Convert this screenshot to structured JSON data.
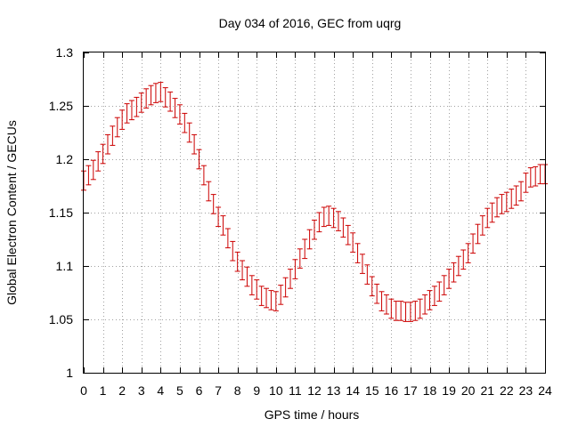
{
  "chart_data": {
    "type": "line",
    "title": "Day 034 of 2016, GEC from uqrg",
    "xlabel": "GPS time / hours",
    "ylabel": "Global Electron Content / GECUs",
    "xlim": [
      0,
      24
    ],
    "ylim": [
      1,
      1.3
    ],
    "grid": true,
    "error_bar_halfwidth": 0.009,
    "x_ticks": [
      0,
      1,
      2,
      3,
      4,
      5,
      6,
      7,
      8,
      9,
      10,
      11,
      12,
      13,
      14,
      15,
      16,
      17,
      18,
      19,
      20,
      21,
      22,
      23,
      24
    ],
    "x_tick_labels": [
      "0",
      "1",
      "2",
      "3",
      "4",
      "5",
      "6",
      "7",
      "8",
      "9",
      "10",
      "11",
      "12",
      "13",
      "14",
      "15",
      "16",
      "17",
      "18",
      "19",
      "20",
      "21",
      "22",
      "23",
      "24"
    ],
    "y_ticks": [
      1,
      1.05,
      1.1,
      1.15,
      1.2,
      1.25,
      1.3
    ],
    "y_tick_labels": [
      "1",
      "1.05",
      "1.1",
      "1.15",
      "1.2",
      "1.25",
      "1.3"
    ],
    "colors": {
      "series": "#cc0000",
      "grid": "#a0a0a0",
      "axis": "#000000"
    },
    "series": [
      {
        "x": [
          0,
          0.25,
          0.5,
          0.75,
          1,
          1.25,
          1.5,
          1.75,
          2,
          2.25,
          2.5,
          2.75,
          3,
          3.25,
          3.5,
          3.75,
          4,
          4.25,
          4.5,
          4.75,
          5,
          5.25,
          5.5,
          5.75,
          6,
          6.25,
          6.5,
          6.75,
          7,
          7.25,
          7.5,
          7.75,
          8,
          8.25,
          8.5,
          8.75,
          9,
          9.25,
          9.5,
          9.75,
          10,
          10.25,
          10.5,
          10.75,
          11,
          11.25,
          11.5,
          11.75,
          12,
          12.25,
          12.5,
          12.75,
          13,
          13.25,
          13.5,
          13.75,
          14,
          14.25,
          14.5,
          14.75,
          15,
          15.25,
          15.5,
          15.75,
          16,
          16.25,
          16.5,
          16.75,
          17,
          17.25,
          17.5,
          17.75,
          18,
          18.25,
          18.5,
          18.75,
          19,
          19.25,
          19.5,
          19.75,
          20,
          20.25,
          20.5,
          20.75,
          21,
          21.25,
          21.5,
          21.75,
          22,
          22.25,
          22.5,
          22.75,
          23,
          23.25,
          23.5,
          23.75,
          24
        ],
        "y": [
          1.18,
          1.185,
          1.19,
          1.198,
          1.205,
          1.214,
          1.222,
          1.23,
          1.237,
          1.243,
          1.246,
          1.249,
          1.253,
          1.257,
          1.26,
          1.262,
          1.263,
          1.258,
          1.254,
          1.248,
          1.242,
          1.234,
          1.225,
          1.214,
          1.2,
          1.185,
          1.17,
          1.158,
          1.146,
          1.138,
          1.126,
          1.114,
          1.104,
          1.096,
          1.09,
          1.082,
          1.078,
          1.072,
          1.07,
          1.068,
          1.067,
          1.073,
          1.08,
          1.088,
          1.097,
          1.107,
          1.116,
          1.125,
          1.134,
          1.141,
          1.146,
          1.147,
          1.145,
          1.142,
          1.136,
          1.129,
          1.122,
          1.112,
          1.102,
          1.092,
          1.081,
          1.074,
          1.067,
          1.064,
          1.06,
          1.058,
          1.058,
          1.057,
          1.057,
          1.058,
          1.06,
          1.064,
          1.068,
          1.072,
          1.076,
          1.082,
          1.088,
          1.094,
          1.1,
          1.106,
          1.112,
          1.121,
          1.13,
          1.138,
          1.145,
          1.15,
          1.155,
          1.158,
          1.16,
          1.163,
          1.166,
          1.17,
          1.178,
          1.183,
          1.184,
          1.186,
          1.186
        ]
      }
    ]
  }
}
